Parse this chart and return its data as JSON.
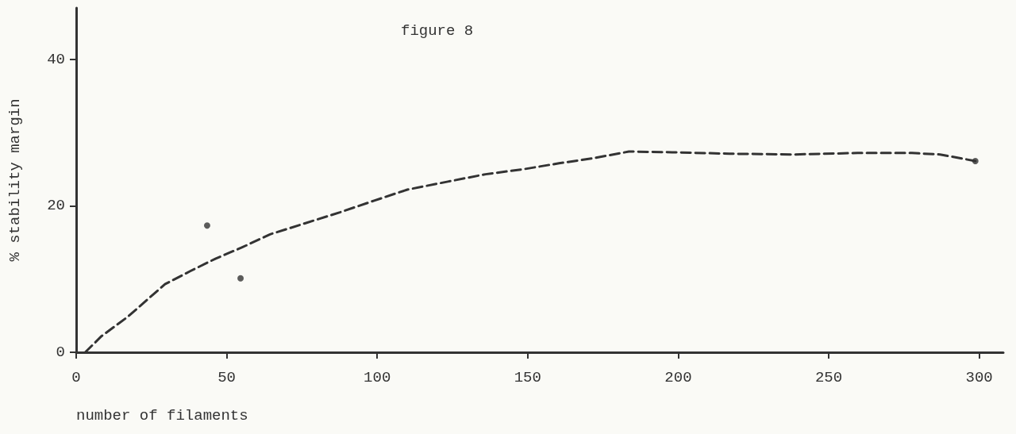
{
  "chart_data": {
    "type": "line",
    "title": "figure 8",
    "xlabel": "number of filaments",
    "ylabel": "% stability margin",
    "xlim": [
      0,
      308
    ],
    "xticks": [
      0,
      50,
      100,
      150,
      200,
      250,
      300
    ],
    "ylim": [
      0,
      47
    ],
    "yticks": [
      0,
      20,
      40
    ],
    "grid": false,
    "series": [
      {
        "color": "#333333",
        "line_style": "dashed",
        "marker": "none",
        "x": [
          3,
          8.4,
          17,
          29.5,
          38,
          46.4,
          55,
          64.4,
          76,
          87.6,
          99,
          110,
          123.5,
          136,
          148.8,
          160.4,
          172,
          183.6,
          198,
          217,
          238.5,
          259.6,
          277.6,
          287,
          298.7
        ],
        "values": [
          0,
          2.2,
          4.8,
          9.3,
          11.1,
          12.8,
          14.3,
          16.1,
          17.6,
          19.1,
          20.7,
          22.2,
          23.3,
          24.3,
          25,
          25.8,
          26.5,
          27.4,
          27.3,
          27.1,
          27,
          27.2,
          27.2,
          27,
          26.1
        ]
      },
      {
        "type": "scatter",
        "color": "#333333",
        "marker": "circle",
        "x": [
          43.5,
          54.6,
          298.7
        ],
        "values": [
          17.3,
          10.1,
          26.1
        ]
      }
    ]
  }
}
